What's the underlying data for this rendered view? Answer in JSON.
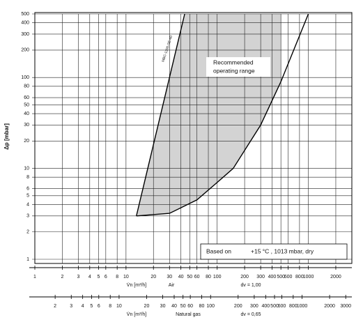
{
  "chart_data": {
    "type": "line",
    "log_x": true,
    "log_y": true,
    "grid": true,
    "y_label": "Δp [mbar]",
    "ylim": [
      1,
      500
    ],
    "yticks": [
      1,
      2,
      3,
      4,
      5,
      6,
      8,
      10,
      20,
      30,
      40,
      50,
      60,
      80,
      100,
      200,
      300,
      400,
      500
    ],
    "x_label": "V̇n [m³/h]",
    "x_name": "Air",
    "x_note": "dv = 1,00",
    "xlim": [
      1,
      3000
    ],
    "xticks": [
      1,
      2,
      3,
      4,
      5,
      6,
      8,
      10,
      20,
      30,
      40,
      50,
      60,
      80,
      100,
      200,
      300,
      400,
      500,
      600,
      800,
      1000,
      2000
    ],
    "x2_label": "V̇n [m³/h]",
    "x2_name": "Natural gas",
    "x2_note": "dv = 0,65",
    "x2lim": [
      1.2,
      3500
    ],
    "x2ticks": [
      2,
      3,
      4,
      5,
      6,
      8,
      10,
      20,
      30,
      40,
      50,
      60,
      80,
      100,
      200,
      300,
      400,
      500,
      600,
      800,
      1000,
      2000,
      3000
    ],
    "area": {
      "color": "#d3d3d3",
      "x": [
        13,
        44,
        500,
        500,
        300,
        150,
        100,
        60,
        30,
        13
      ],
      "values": [
        3,
        500,
        500,
        90,
        30,
        10,
        7,
        4.5,
        3.2,
        3
      ]
    },
    "series": [
      {
        "color": "#000000",
        "x": [
          13,
          44
        ],
        "values": [
          3,
          500
        ]
      },
      {
        "color": "#000000",
        "x": [
          1000,
          500,
          300,
          150,
          100,
          60,
          30,
          13
        ],
        "values": [
          500,
          90,
          30,
          10,
          7,
          4.5,
          3.2,
          3
        ]
      }
    ],
    "curve_label": "MBC-1200-SE-40",
    "range_label": [
      "Recommended",
      "operating range"
    ],
    "conditions": [
      "Based on",
      "+15 °C , 1013 mbar, dry"
    ]
  }
}
